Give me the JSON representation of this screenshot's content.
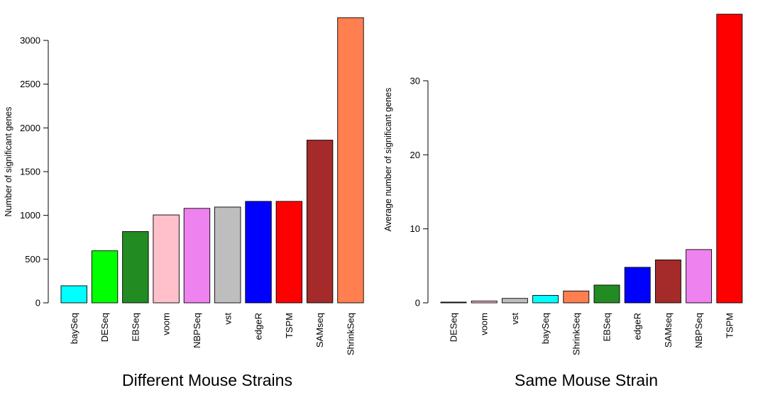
{
  "chart_data": [
    {
      "type": "bar",
      "title": "Different Mouse Strains",
      "xlabel": "",
      "ylabel": "Number of significant genes",
      "ylim": [
        0,
        3300
      ],
      "yticks": [
        0,
        500,
        1000,
        1500,
        2000,
        2500,
        3000
      ],
      "grid": false,
      "categories": [
        "baySeq",
        "DESeq",
        "EBSeq",
        "voom",
        "NBPSeq",
        "vst",
        "edgeR",
        "TSPM",
        "SAMseq",
        "ShrinkSeq"
      ],
      "values": [
        195,
        595,
        815,
        1005,
        1080,
        1095,
        1160,
        1160,
        1860,
        3260
      ],
      "colors": [
        "#00ffff",
        "#00ff00",
        "#228b22",
        "#ffc0cb",
        "#ee82ee",
        "#bebebe",
        "#0000ff",
        "#ff0000",
        "#a52a2a",
        "#ff7f50"
      ]
    },
    {
      "type": "bar",
      "title": "Same Mouse Strain",
      "xlabel": "",
      "ylabel": "Average number of significant genes",
      "ylim": [
        0,
        39
      ],
      "yticks": [
        0,
        10,
        20,
        30
      ],
      "grid": false,
      "categories": [
        "DESeq",
        "voom",
        "vst",
        "baySeq",
        "ShrinkSeq",
        "EBSeq",
        "edgeR",
        "SAMseq",
        "NBPSeq",
        "TSPM"
      ],
      "values": [
        0.1,
        0.25,
        0.6,
        1.0,
        1.6,
        2.4,
        4.8,
        5.8,
        7.2,
        39
      ],
      "colors": [
        "#228b22",
        "#ffc0cb",
        "#bebebe",
        "#00ffff",
        "#ff7f50",
        "#228b22",
        "#0000ff",
        "#a52a2a",
        "#ee82ee",
        "#ff0000"
      ]
    }
  ]
}
